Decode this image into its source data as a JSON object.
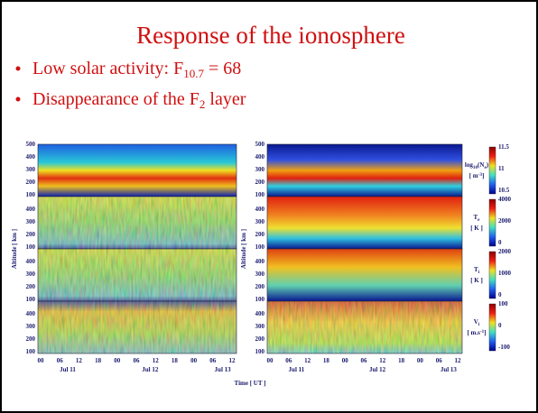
{
  "slide": {
    "title": "Response of the ionosphere",
    "bullets": [
      {
        "parts": [
          {
            "text": "Low solar activity: F"
          },
          {
            "text": "10.7",
            "style": "sub"
          },
          {
            "text": " = 68"
          }
        ]
      },
      {
        "parts": [
          {
            "text": "Disappearance of the F"
          },
          {
            "text": "2",
            "style": "sub"
          },
          {
            "text": " layer"
          }
        ]
      }
    ]
  },
  "figure": {
    "y_axis_title": "Altitude [ km ]",
    "x_axis_title": "Time [ UT ]",
    "y_ticks_top": [
      "500",
      "400",
      "300",
      "200",
      "100"
    ],
    "y_ticks": [
      "400",
      "300",
      "200",
      "100"
    ],
    "x_ticks": [
      "00",
      "06",
      "12",
      "18",
      "00",
      "06",
      "12",
      "18",
      "00",
      "06",
      "12"
    ],
    "date_labels": [
      "Jul 11",
      "Jul 12",
      "Jul 13"
    ],
    "colorbars": [
      {
        "label": [
          {
            "text": "log"
          },
          {
            "text": "10",
            "style": "sub"
          },
          {
            "text": "(N"
          },
          {
            "text": "e",
            "style": "sub"
          },
          {
            "text": ")"
          }
        ],
        "unit": [
          {
            "text": "[ m"
          },
          {
            "text": "-3",
            "style": "sup"
          },
          {
            "text": "]"
          }
        ],
        "ticks": [
          "11.5",
          "11",
          "10.5"
        ]
      },
      {
        "label": [
          {
            "text": "T"
          },
          {
            "text": "e",
            "style": "sub"
          }
        ],
        "unit": [
          {
            "text": "[ K ]"
          }
        ],
        "ticks": [
          "4000",
          "2000",
          "0"
        ]
      },
      {
        "label": [
          {
            "text": "T"
          },
          {
            "text": "i",
            "style": "sub"
          }
        ],
        "unit": [
          {
            "text": "[ K ]"
          }
        ],
        "ticks": [
          "2000",
          "1000",
          "0"
        ]
      },
      {
        "label": [
          {
            "text": "V"
          },
          {
            "text": "i",
            "style": "sub"
          }
        ],
        "unit": [
          {
            "text": "[ m.s"
          },
          {
            "text": "-1",
            "style": "sup"
          },
          {
            "text": "]"
          }
        ],
        "ticks": [
          "100",
          "0",
          "-100"
        ]
      }
    ]
  }
}
